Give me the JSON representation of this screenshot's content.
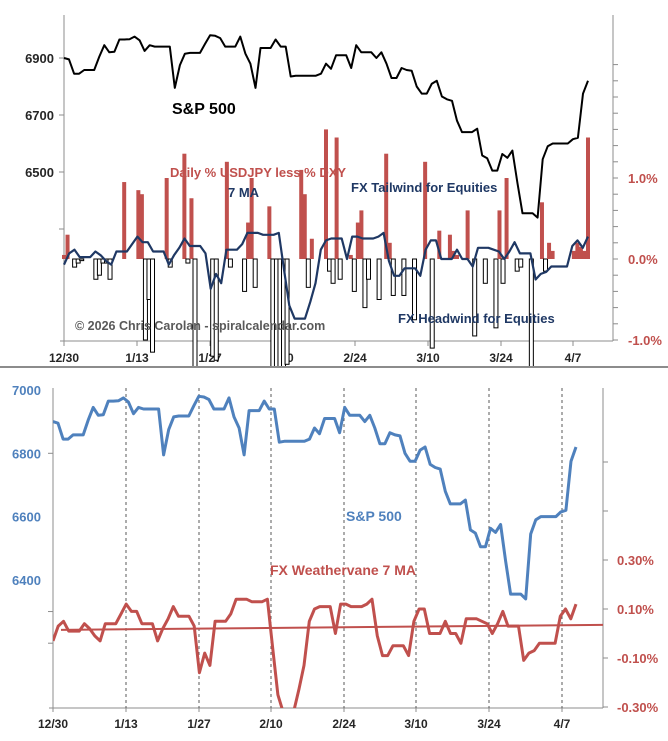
{
  "chart_data": [
    {
      "id": "top",
      "type": "line+bar",
      "title": "",
      "x_ticks": [
        "12/30",
        "1/13",
        "1/27",
        "2/10",
        "2/24",
        "3/10",
        "3/24",
        "4/7"
      ],
      "left_axis": {
        "ticks": [
          "6500",
          "6700",
          "6900"
        ],
        "tick_values": [
          6500,
          6700,
          6900
        ],
        "range": [
          6300,
          7050
        ]
      },
      "right_axis": {
        "ticks": [
          "1.0%",
          "0.0%",
          "-1.0%"
        ],
        "tick_values": [
          1.0,
          0.0,
          -1.0
        ],
        "range": [
          -1.0,
          2.7
        ]
      },
      "annotations": {
        "sp_label": "S&P 500",
        "bars_label": "Daily % USDJPY less % DXY",
        "ma_label": "7 MA",
        "tailwind": "FX Tailwind for Equities",
        "headwind": "FX Headwind for Equities",
        "copyright": "© 2026 Chris Carolan - spiralcalendar.com"
      },
      "series": [
        {
          "name": "S&P 500",
          "axis": "left",
          "color": "#000000",
          "kind": "line"
        },
        {
          "name": "Daily % USDJPY less % DXY",
          "axis": "right",
          "kind": "bar",
          "pos_color": "#c0504d",
          "neg_color": "#ffffff"
        },
        {
          "name": "7 MA",
          "axis": "right",
          "color": "#1f3864",
          "kind": "line"
        }
      ]
    },
    {
      "id": "bottom",
      "type": "line",
      "x_ticks": [
        "12/30",
        "1/13",
        "1/27",
        "2/10",
        "2/24",
        "3/10",
        "3/24",
        "4/7"
      ],
      "left_axis": {
        "ticks": [
          "7000",
          "6800",
          "6600",
          "6400"
        ],
        "tick_values": [
          7000,
          6800,
          6600,
          6400
        ],
        "range": [
          6200,
          7000
        ]
      },
      "right_axis": {
        "ticks": [
          "0.30%",
          "0.10%",
          "-0.10%",
          "-0.30%"
        ],
        "tick_values": [
          0.3,
          0.1,
          -0.1,
          -0.3
        ],
        "range": [
          -0.3,
          0.55
        ]
      },
      "annotations": {
        "sp_label": "S&P 500",
        "fx_label": "FX Weathervane 7 MA"
      },
      "series": [
        {
          "name": "S&P 500",
          "axis": "left",
          "color": "#4f81bd"
        },
        {
          "name": "FX Weathervane 7 MA",
          "axis": "right",
          "color": "#c0504d"
        },
        {
          "name": "Trend",
          "axis": "right",
          "color": "#c0504d",
          "values": [
            0.015,
            0.035
          ]
        }
      ]
    }
  ],
  "shared": {
    "sp500": [
      6900,
      6895,
      6845,
      6845,
      6858,
      6858,
      6858,
      6905,
      6945,
      6920,
      6922,
      6965,
      6965,
      6966,
      6975,
      6962,
      6925,
      6945,
      6940,
      6940,
      6940,
      6940,
      6795,
      6875,
      6915,
      6918,
      6918,
      6918,
      6950,
      6980,
      6978,
      6970,
      6940,
      6940,
      6940,
      6975,
      6915,
      6880,
      6795,
      6935,
      6935,
      6935,
      6965,
      6940,
      6940,
      6835,
      6838,
      6838,
      6838,
      6838,
      6838,
      6845,
      6880,
      6862,
      6910,
      6910,
      6910,
      6865,
      6945,
      6920,
      6920,
      6920,
      6900,
      6920,
      6880,
      6830,
      6830,
      6865,
      6858,
      6855,
      6800,
      6775,
      6775,
      6810,
      6820,
      6765,
      6755,
      6750,
      6680,
      6640,
      6640,
      6640,
      6652,
      6558,
      6548,
      6505,
      6505,
      6563,
      6550,
      6575,
      6460,
      6355,
      6355,
      6355,
      6340,
      6545,
      6590,
      6600,
      6600,
      6600,
      6600,
      6615,
      6620,
      6775,
      6820
    ],
    "fx_daily": [
      0.05,
      0.3,
      0.0,
      -0.1,
      -0.05,
      -0.02,
      0.0,
      0.0,
      0.0,
      -0.25,
      -0.2,
      -0.05,
      -0.05,
      -0.25,
      0.0,
      0.0,
      0.0,
      0.95,
      0.0,
      0.0,
      0.0,
      0.85,
      0.8,
      -1.0,
      -0.5,
      -1.15,
      0.0,
      0.0,
      0.0,
      1.0,
      -0.1,
      0.0,
      0.0,
      0.0,
      1.3,
      -0.05,
      0.75,
      -2.8,
      0.0,
      0.0,
      0.0,
      0.0,
      -1.2,
      -1.25,
      0.0,
      0.0,
      1.2,
      -0.1,
      0.0,
      0.0,
      0.0,
      -0.4,
      0.45,
      1.0,
      -0.35,
      0.0,
      0.0,
      0.0,
      0.65,
      -1.65,
      -2.8,
      -1.7,
      -2.7,
      -1.3,
      0.0,
      0.0,
      0.0,
      1.1,
      0.8,
      -0.35,
      0.25,
      0.0,
      0.0,
      0.0,
      1.6,
      -0.15,
      -0.3,
      1.5,
      -0.25,
      0.0,
      0.0,
      0.05,
      -0.4,
      0.45,
      0.6,
      -0.6,
      -0.25,
      0.0,
      0.0,
      -0.5,
      0.0,
      1.3,
      0.2,
      -0.45,
      0.0,
      0.0,
      -0.45,
      0.0,
      0.0,
      -0.75,
      0.0,
      0.0,
      1.2,
      0.0,
      -1.1,
      0.0,
      0.35,
      0.0,
      0.0,
      0.3,
      0.1,
      0.05,
      0.0,
      0.0,
      0.6,
      0.0,
      -0.95,
      0.0,
      0.0,
      -0.3,
      0.0,
      0.0,
      -0.85,
      0.6,
      -0.3,
      1.0,
      0.0,
      0.0,
      -0.15,
      -0.1,
      0.0,
      0.0,
      -1.9,
      0.0,
      0.0,
      0.7,
      -0.15,
      0.2,
      0.1,
      0.0,
      0.0,
      0.0,
      0.0,
      0.0,
      0.1,
      0.2,
      0.15,
      0.1,
      1.5
    ],
    "fx_ma": [
      -0.03,
      0.03,
      0.05,
      0.01,
      0.01,
      0.01,
      0.04,
      0.02,
      -0.01,
      -0.03,
      0.04,
      0.04,
      0.04,
      0.08,
      0.12,
      0.09,
      0.09,
      0.04,
      0.04,
      0.04,
      -0.03,
      0.02,
      0.06,
      0.11,
      0.07,
      0.07,
      0.07,
      0.03,
      -0.16,
      -0.08,
      -0.13,
      0.05,
      0.05,
      0.05,
      0.08,
      0.14,
      0.14,
      0.14,
      0.13,
      0.13,
      0.13,
      0.14,
      -0.06,
      -0.25,
      -0.32,
      -0.32,
      -0.32,
      -0.23,
      -0.13,
      0.05,
      0.1,
      0.11,
      0.11,
      0.11,
      0.0,
      0.12,
      0.12,
      0.11,
      0.11,
      0.11,
      0.12,
      0.14,
      -0.01,
      -0.09,
      -0.09,
      -0.05,
      -0.05,
      -0.05,
      -0.09,
      0.05,
      0.1,
      0.1,
      0.0,
      0.0,
      0.0,
      0.05,
      0.0,
      0.0,
      -0.04,
      0.06,
      0.06,
      0.06,
      0.05,
      0.04,
      0.0,
      0.04,
      0.09,
      0.03,
      0.03,
      0.03,
      -0.11,
      -0.08,
      -0.07,
      -0.04,
      -0.04,
      -0.04,
      -0.04,
      0.07,
      0.1,
      0.06,
      0.12
    ]
  }
}
